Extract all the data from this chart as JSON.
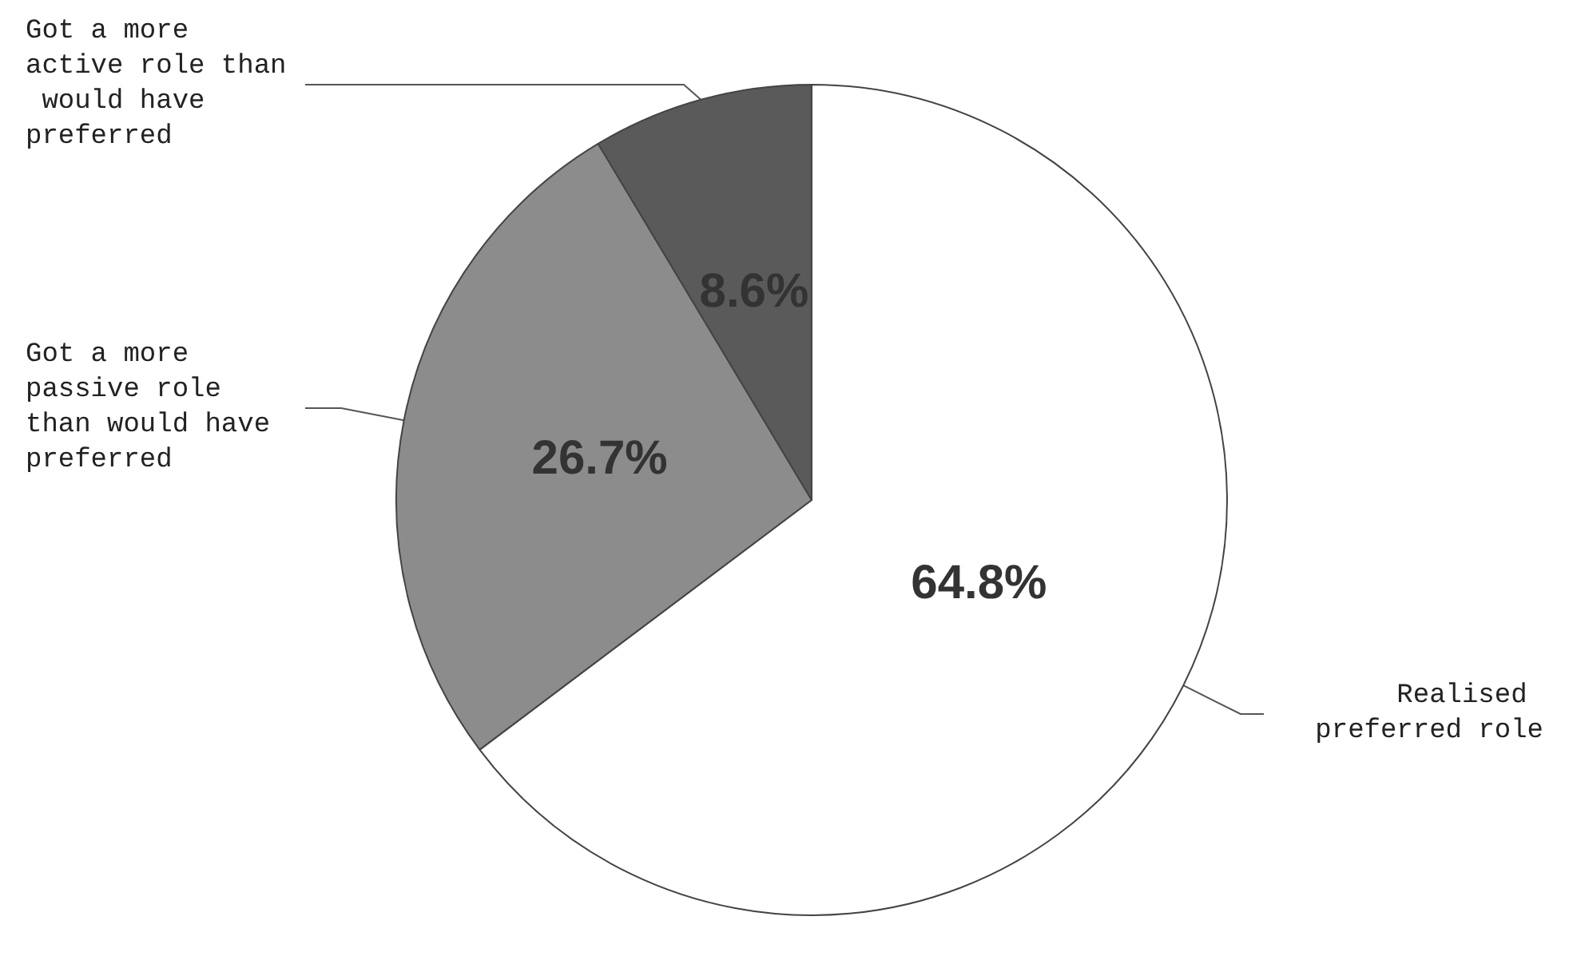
{
  "chart_data": {
    "type": "pie",
    "categories": [
      "Realised preferred role",
      "Got a more passive role than would have preferred",
      "Got a more active role than would have preferred"
    ],
    "values": [
      64.8,
      26.7,
      8.6
    ],
    "colors": [
      "#ffffff",
      "#8c8c8c",
      "#5a5a5a"
    ],
    "value_labels": [
      "64.8%",
      "26.7%",
      "8.6%"
    ],
    "legend": false
  }
}
